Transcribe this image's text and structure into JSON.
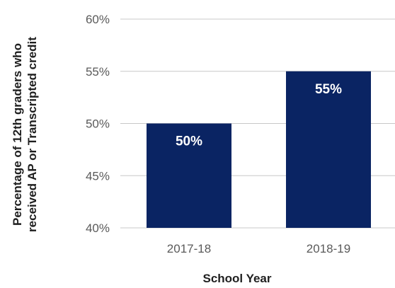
{
  "chart_data": {
    "type": "bar",
    "categories": [
      "2017-18",
      "2018-19"
    ],
    "values": [
      50,
      55
    ],
    "data_labels": [
      "50%",
      "55%"
    ],
    "xlabel": "School Year",
    "ylabel": "Percentage of 12th graders who received AP or Transcripted credit",
    "ylabel_lines": [
      "Percentage of 12th graders who",
      "received AP or Transcripted credit"
    ],
    "ylim": [
      40,
      60
    ],
    "yticks": [
      40,
      45,
      50,
      55,
      60
    ],
    "ytick_labels": [
      "40%",
      "45%",
      "50%",
      "55%",
      "60%"
    ],
    "grid": true,
    "bar_color": "#0a2463"
  }
}
